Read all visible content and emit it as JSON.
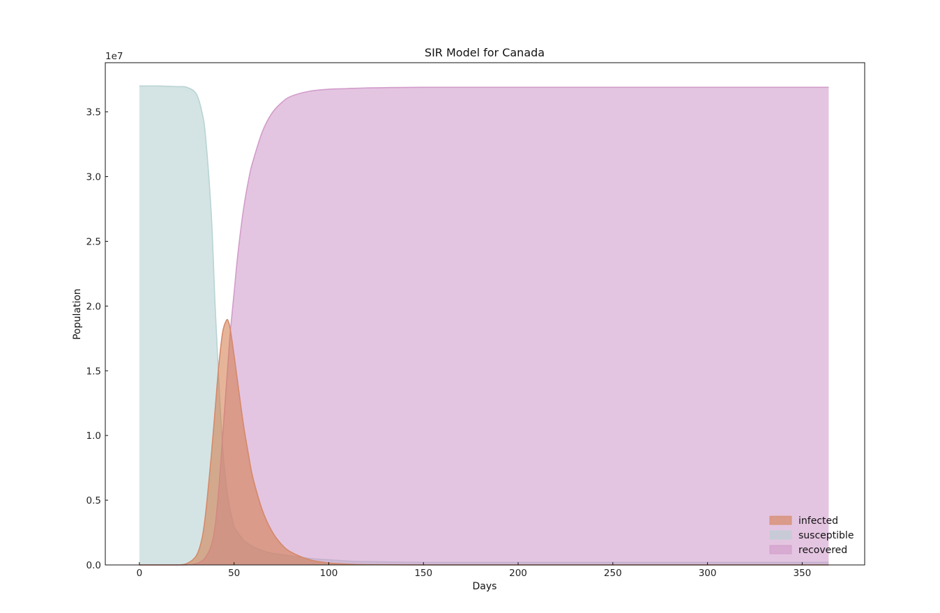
{
  "chart_data": {
    "type": "area",
    "title": "SIR Model for Canada",
    "xlabel": "Days",
    "ylabel": "Population",
    "y_offset_label": "1e7",
    "xlim": [
      -18,
      383
    ],
    "ylim": [
      0,
      3.88
    ],
    "y_unit_multiplier": 10000000,
    "xticks": [
      0,
      50,
      100,
      150,
      200,
      250,
      300,
      350
    ],
    "yticks": [
      0.0,
      0.5,
      1.0,
      1.5,
      2.0,
      2.5,
      3.0,
      3.5
    ],
    "ytick_labels": [
      "0.0",
      "0.5",
      "1.0",
      "1.5",
      "2.0",
      "2.5",
      "3.0",
      "3.5"
    ],
    "grid": false,
    "legend_position": "lower right",
    "x": [
      0,
      10,
      20,
      25,
      30,
      33,
      35,
      38,
      40,
      42,
      44,
      46,
      47,
      48,
      50,
      52,
      55,
      58,
      60,
      65,
      70,
      75,
      80,
      90,
      100,
      110,
      120,
      150,
      200,
      250,
      300,
      364
    ],
    "series": [
      {
        "name": "infected",
        "color": "#d4896a",
        "fill": "rgba(210,120,70,0.55)",
        "values": [
          0.0,
          0.0,
          0.0,
          0.01,
          0.07,
          0.2,
          0.4,
          0.85,
          1.2,
          1.55,
          1.8,
          1.89,
          1.88,
          1.82,
          1.62,
          1.4,
          1.08,
          0.82,
          0.67,
          0.42,
          0.26,
          0.16,
          0.1,
          0.04,
          0.015,
          0.006,
          0.002,
          0.0,
          0.0,
          0.0,
          0.0,
          0.0
        ]
      },
      {
        "name": "susceptible",
        "color": "#b9d3d3",
        "fill": "rgba(176,206,208,0.55)",
        "values": [
          3.7,
          3.7,
          3.695,
          3.69,
          3.64,
          3.5,
          3.3,
          2.7,
          2.0,
          1.4,
          0.9,
          0.6,
          0.5,
          0.42,
          0.3,
          0.25,
          0.19,
          0.16,
          0.14,
          0.11,
          0.09,
          0.08,
          0.07,
          0.05,
          0.04,
          0.03,
          0.025,
          0.02,
          0.02,
          0.02,
          0.02,
          0.02
        ]
      },
      {
        "name": "recovered",
        "color": "#d29cca",
        "fill": "rgba(206,150,200,0.55)",
        "values": [
          0.0,
          0.0,
          0.0,
          0.0,
          0.01,
          0.03,
          0.06,
          0.15,
          0.3,
          0.6,
          1.0,
          1.4,
          1.6,
          1.8,
          2.1,
          2.4,
          2.75,
          3.0,
          3.12,
          3.35,
          3.49,
          3.57,
          3.62,
          3.66,
          3.675,
          3.68,
          3.685,
          3.69,
          3.69,
          3.69,
          3.69,
          3.69
        ]
      }
    ],
    "draw_order": [
      "susceptible",
      "recovered",
      "infected"
    ]
  }
}
